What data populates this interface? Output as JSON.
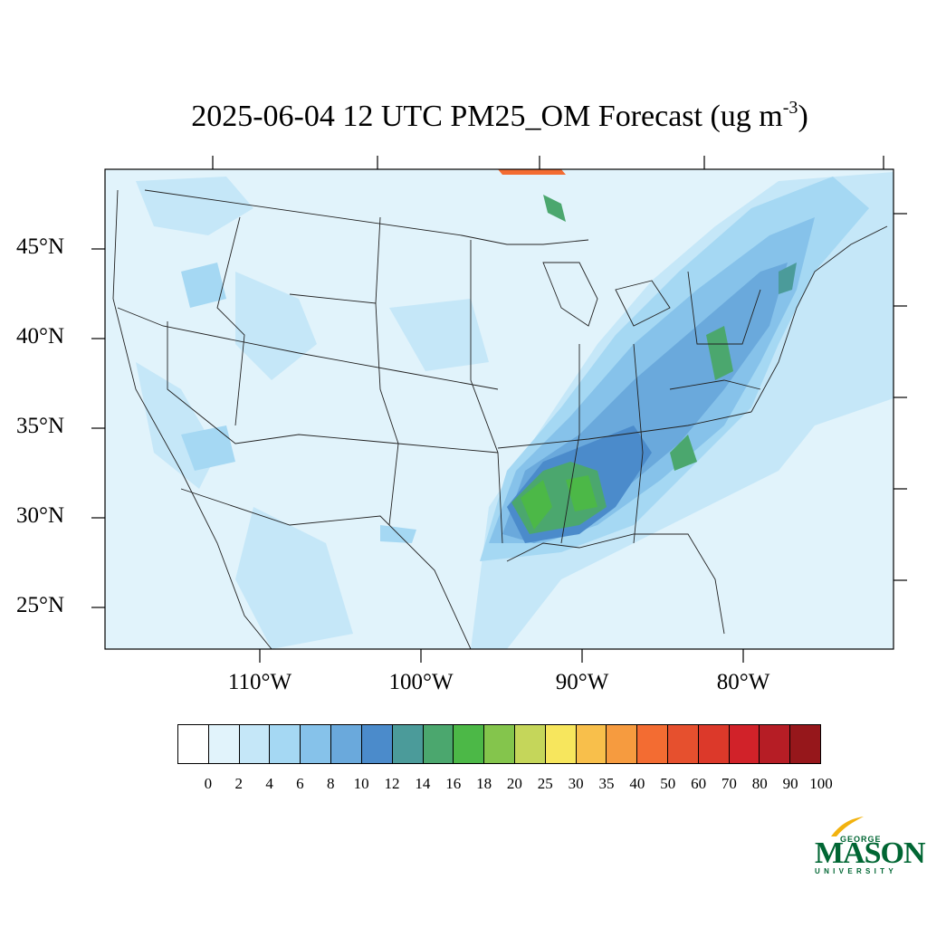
{
  "title": {
    "main": "2025-06-04 12 UTC PM25_OM Forecast (ug m",
    "superscript": "-3",
    "close": ")"
  },
  "latitude_labels": [
    "45°N",
    "40°N",
    "35°N",
    "30°N",
    "25°N"
  ],
  "longitude_labels": [
    "110°W",
    "100°W",
    "90°W",
    "80°W"
  ],
  "colorbar": {
    "levels": [
      "0",
      "2",
      "4",
      "6",
      "8",
      "10",
      "12",
      "14",
      "16",
      "18",
      "20",
      "25",
      "30",
      "35",
      "40",
      "50",
      "60",
      "70",
      "80",
      "90",
      "100"
    ],
    "colors": [
      "#ffffff",
      "#e1f3fb",
      "#c5e7f8",
      "#a5d8f3",
      "#86c2ea",
      "#6aa9dc",
      "#4b8bcb",
      "#4b9b9a",
      "#4ba76e",
      "#4cb847",
      "#84c54c",
      "#c5d65a",
      "#f7e65d",
      "#f8bf4b",
      "#f69b3f",
      "#f36c32",
      "#e6502e",
      "#dc392a",
      "#d12229",
      "#b61d25",
      "#96171b"
    ]
  },
  "logo": {
    "top": "GEORGE",
    "main": "MASON",
    "bottom": "UNIVERSITY",
    "brand_color": "#006633",
    "accent_color": "#f2b20e"
  },
  "map": {
    "background_color": "#e1f3fb"
  }
}
